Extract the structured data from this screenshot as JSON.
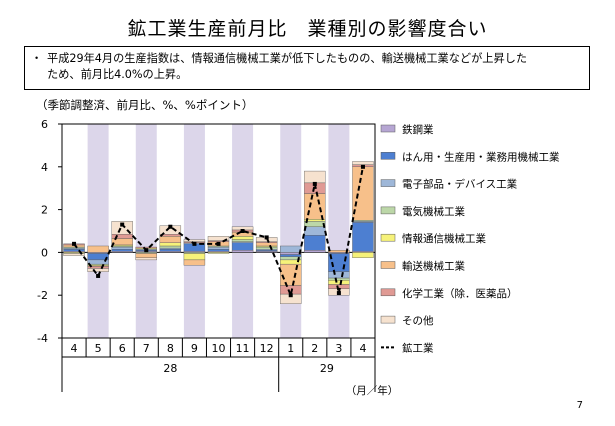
{
  "title": "鉱工業生産前月比　業種別の影響度合い",
  "summary": {
    "bullet": "・",
    "line1": "平成29年4月の生産指数は、情報通信機械工業が低下したものの、輸送機械工業などが上昇した",
    "line2": "ため、前月比4.0%の上昇。"
  },
  "units_note": "（季節調整済、前月比、%、%ポイント）",
  "page_number": "7",
  "colors": {
    "band": "#dcd6ea",
    "鉄鋼業": "#b6a6d3",
    "はん用・生産用・業務用機械工業": "#4d7fd1",
    "電子部品・デバイス工業": "#9eb7d8",
    "電気機械工業": "#bcd7a8",
    "情報通信機械工業": "#f6f27a",
    "輸送機械工業": "#f7c08a",
    "化学工業（除．医薬品）": "#e09a94",
    "その他": "#f6e2cf",
    "鉱工業": "#000000"
  },
  "chart_data": {
    "type": "bar",
    "stacked": true,
    "categories": [
      "4",
      "5",
      "6",
      "7",
      "8",
      "9",
      "10",
      "11",
      "12",
      "1",
      "2",
      "3",
      "4"
    ],
    "year_labels": [
      {
        "label": "28",
        "from_index": 0,
        "to_index": 8
      },
      {
        "label": "29",
        "from_index": 9,
        "to_index": 12
      }
    ],
    "x_unit_label": "（月／年）",
    "ylim": [
      -4,
      6
    ],
    "yticks": [
      6,
      4,
      2,
      0,
      -2,
      -4
    ],
    "shaded_categories": [
      1,
      3,
      5,
      7,
      9,
      11
    ],
    "series": [
      {
        "name": "鉄鋼業",
        "values": [
          0.05,
          -0.05,
          0.05,
          0.05,
          0.05,
          0.05,
          0.05,
          0.1,
          0.05,
          -0.1,
          0.1,
          -0.05,
          0.05
        ]
      },
      {
        "name": "はん用・生産用・業務用機械工業",
        "values": [
          0.1,
          -0.3,
          0.1,
          0.05,
          0.1,
          0.35,
          0.1,
          0.35,
          0.05,
          -0.1,
          0.7,
          -0.85,
          1.35
        ]
      },
      {
        "name": "電子部品・デバイス工業",
        "values": [
          0.05,
          -0.2,
          0.1,
          0.05,
          0.05,
          0.05,
          0.1,
          0.05,
          0.05,
          0.3,
          0.4,
          -0.3,
          0.05
        ]
      },
      {
        "name": "電気機械工業",
        "values": [
          0.05,
          -0.05,
          0.05,
          -0.05,
          0.1,
          -0.05,
          0.05,
          0.1,
          0.1,
          -0.15,
          0.25,
          -0.1,
          0.05
        ]
      },
      {
        "name": "情報通信機械工業",
        "values": [
          -0.05,
          -0.05,
          0.05,
          0.05,
          0.15,
          -0.3,
          -0.05,
          0.15,
          0.05,
          -0.2,
          0.1,
          -0.2,
          -0.25
        ]
      },
      {
        "name": "輸送機械工業",
        "values": [
          0.1,
          0.3,
          0.3,
          -0.2,
          0.3,
          -0.25,
          0.2,
          0.2,
          0.15,
          -1.0,
          1.2,
          0.1,
          2.5
        ]
      },
      {
        "name": "化学工業（除．医薬品）",
        "values": [
          0.05,
          -0.1,
          0.2,
          0.05,
          0.1,
          0.05,
          0.05,
          0.1,
          0.05,
          -0.4,
          0.5,
          -0.2,
          0.1
        ]
      },
      {
        "name": "その他",
        "values": [
          -0.1,
          -0.15,
          0.6,
          -0.1,
          0.4,
          0.1,
          0.2,
          0.15,
          0.2,
          -0.45,
          0.55,
          -0.3,
          0.15
        ]
      }
    ],
    "line": {
      "name": "鉱工業",
      "values": [
        0.4,
        -1.1,
        1.3,
        0.1,
        1.2,
        0.4,
        0.4,
        1.0,
        0.7,
        -2.0,
        3.2,
        -1.9,
        4.0
      ]
    },
    "legend_position": "right"
  }
}
